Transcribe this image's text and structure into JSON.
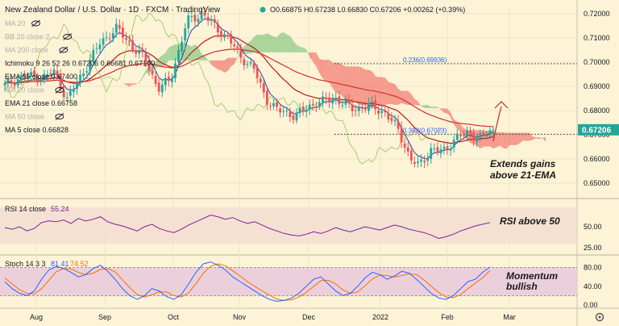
{
  "header": {
    "symbol": "New Zealand Dollar / U.S. Dollar · 1D · FXCM · TradingView",
    "ohlc": "O0.66875 H0.67238 L0.66830 C0.67206 +0.00262 (+0.39%)",
    "up_color": "#26a69a",
    "down_color": "#ef5350"
  },
  "legend": [
    {
      "text": "MA 20",
      "color": "#b0b0b0",
      "muted": true
    },
    {
      "text": "BB 20 close 2",
      "color": "#b0b0b0",
      "muted": true
    },
    {
      "text": "MA 200 close",
      "color": "#b0b0b0",
      "muted": true
    },
    {
      "text": "Ichimoku 9 26 52 26  0.67206  0.66681  0.67100",
      "color": "#131722",
      "muted": false
    },
    {
      "text": "EMA 55 close  0.67400",
      "color": "#131722",
      "muted": false
    },
    {
      "text": "MA 20 close",
      "color": "#b0b0b0",
      "muted": true
    },
    {
      "text": "EMA 21 close  0.66758",
      "color": "#131722",
      "muted": false
    },
    {
      "text": "MA 50 close",
      "color": "#b0b0b0",
      "muted": true
    },
    {
      "text": "MA 5 close  0.66828",
      "color": "#131722",
      "muted": false
    }
  ],
  "annotations": {
    "main": [
      "Extends gains",
      "above 21-EMA"
    ],
    "rsi": "RSI above 50",
    "stoch": [
      "Momentum",
      "bullish"
    ]
  },
  "panes": {
    "rsi_title": "RSI 14 close",
    "rsi_value": "55.24",
    "stoch_title": "Stoch 14 3 3",
    "stoch_k": "81.41",
    "stoch_d": "74.52"
  },
  "chart_data": {
    "type": "candlestick",
    "x_labels": [
      "Aug",
      "Sep",
      "Oct",
      "Nov",
      "Dec",
      "2022",
      "Feb",
      "Mar"
    ],
    "price_ticks": [
      "0.72000",
      "0.71000",
      "0.70000",
      "0.69000",
      "0.68000",
      "0.67000",
      "0.66000",
      "0.65000"
    ],
    "price_range": [
      0.645,
      0.723
    ],
    "last_price": "0.67206",
    "fib_levels": [
      {
        "label": "0.236(0.69936)",
        "value": 0.69936
      },
      {
        "label": "0.382(0.67023)",
        "value": 0.67023
      }
    ],
    "rsi": {
      "ticks": [
        "50.00",
        "25.00"
      ],
      "range": [
        20,
        80
      ],
      "values": [
        49,
        47,
        50,
        45,
        48,
        55,
        57,
        56,
        58,
        54,
        60,
        57,
        59,
        62,
        56,
        53,
        51,
        48,
        45,
        50,
        53,
        48,
        45,
        43,
        47,
        52,
        56,
        60,
        64,
        62,
        59,
        61,
        57,
        54,
        56,
        52,
        48,
        45,
        42,
        40,
        39,
        41,
        44,
        42,
        45,
        49,
        46,
        44,
        47,
        50,
        48,
        46,
        49,
        52,
        50,
        47,
        45,
        43,
        40,
        36,
        38,
        41,
        45,
        48,
        51,
        53,
        55
      ]
    },
    "stoch": {
      "ticks": [
        "80.00",
        "40.00",
        "0.00"
      ],
      "range": [
        0,
        100
      ],
      "k": [
        50,
        35,
        25,
        20,
        30,
        55,
        75,
        82,
        78,
        70,
        60,
        65,
        78,
        85,
        72,
        55,
        35,
        20,
        12,
        20,
        35,
        30,
        18,
        12,
        22,
        45,
        70,
        88,
        92,
        85,
        75,
        60,
        50,
        40,
        30,
        20,
        12,
        8,
        10,
        15,
        25,
        40,
        55,
        60,
        45,
        30,
        20,
        25,
        40,
        58,
        70,
        65,
        55,
        62,
        72,
        68,
        55,
        40,
        25,
        15,
        12,
        20,
        35,
        50,
        55,
        70,
        81
      ],
      "d": [
        58,
        45,
        33,
        25,
        24,
        35,
        53,
        71,
        78,
        77,
        70,
        65,
        68,
        76,
        78,
        71,
        54,
        37,
        22,
        17,
        22,
        28,
        28,
        20,
        17,
        26,
        46,
        68,
        83,
        88,
        84,
        73,
        62,
        50,
        40,
        30,
        21,
        13,
        10,
        11,
        17,
        27,
        40,
        52,
        53,
        45,
        32,
        25,
        28,
        41,
        56,
        64,
        63,
        60,
        63,
        67,
        65,
        54,
        40,
        27,
        17,
        16,
        22,
        35,
        47,
        58,
        74
      ]
    }
  }
}
